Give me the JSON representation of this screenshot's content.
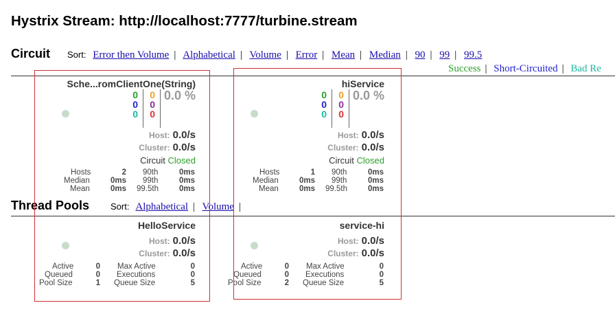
{
  "page_title": "Hystrix Stream: http://localhost:7777/turbine.stream",
  "circuit_section": {
    "title": "Circuit",
    "sort_label": "Sort:",
    "sort_options": [
      "Error then Volume",
      "Alphabetical",
      "Volume",
      "Error",
      "Mean",
      "Median",
      "90",
      "99",
      "99.5"
    ],
    "legend": [
      {
        "label": "Success",
        "color": "#2ca02c"
      },
      {
        "label": "Short-Circuited",
        "color": "#2222cc"
      },
      {
        "label": "Bad Re",
        "color": "#1cb8a0"
      }
    ]
  },
  "circuits": [
    {
      "name": "Sche...romClientOne(String)",
      "counts_left": [
        "0",
        "0",
        "0"
      ],
      "counts_right": [
        "0",
        "0",
        "0"
      ],
      "error_rate": "0.0 %",
      "host_label": "Host:",
      "host_rate": "0.0/s",
      "cluster_label": "Cluster:",
      "cluster_rate": "0.0/s",
      "circuit_label": "Circuit",
      "circuit_status": "Closed",
      "stats": {
        "hosts_label": "Hosts",
        "hosts": "2",
        "median_label": "Median",
        "median": "0ms",
        "mean_label": "Mean",
        "mean": "0ms",
        "p90_label": "90th",
        "p90": "0ms",
        "p99_label": "99th",
        "p99": "0ms",
        "p995_label": "99.5th",
        "p995": "0ms"
      }
    },
    {
      "name": "hiService",
      "counts_left": [
        "0",
        "0",
        "0"
      ],
      "counts_right": [
        "0",
        "0",
        "0"
      ],
      "error_rate": "0.0 %",
      "host_label": "Host:",
      "host_rate": "0.0/s",
      "cluster_label": "Cluster:",
      "cluster_rate": "0.0/s",
      "circuit_label": "Circuit",
      "circuit_status": "Closed",
      "stats": {
        "hosts_label": "Hosts",
        "hosts": "1",
        "median_label": "Median",
        "median": "0ms",
        "mean_label": "Mean",
        "mean": "0ms",
        "p90_label": "90th",
        "p90": "0ms",
        "p99_label": "99th",
        "p99": "0ms",
        "p995_label": "99.5th",
        "p995": "0ms"
      }
    }
  ],
  "thread_section": {
    "title": "Thread Pools",
    "sort_label": "Sort:",
    "sort_options": [
      "Alphabetical",
      "Volume"
    ]
  },
  "thread_pools": [
    {
      "name": "HelloService",
      "host_label": "Host:",
      "host_rate": "0.0/s",
      "cluster_label": "Cluster:",
      "cluster_rate": "0.0/s",
      "stats": {
        "active_label": "Active",
        "active": "0",
        "queued_label": "Queued",
        "queued": "0",
        "pool_size_label": "Pool Size",
        "pool_size": "1",
        "max_active_label": "Max Active",
        "max_active": "0",
        "executions_label": "Executions",
        "executions": "0",
        "queue_size_label": "Queue Size",
        "queue_size": "5"
      }
    },
    {
      "name": "service-hi",
      "host_label": "Host:",
      "host_rate": "0.0/s",
      "cluster_label": "Cluster:",
      "cluster_rate": "0.0/s",
      "stats": {
        "active_label": "Active",
        "active": "0",
        "queued_label": "Queued",
        "queued": "0",
        "pool_size_label": "Pool Size",
        "pool_size": "2",
        "max_active_label": "Max Active",
        "max_active": "0",
        "executions_label": "Executions",
        "executions": "0",
        "queue_size_label": "Queue Size",
        "queue_size": "5"
      }
    }
  ]
}
